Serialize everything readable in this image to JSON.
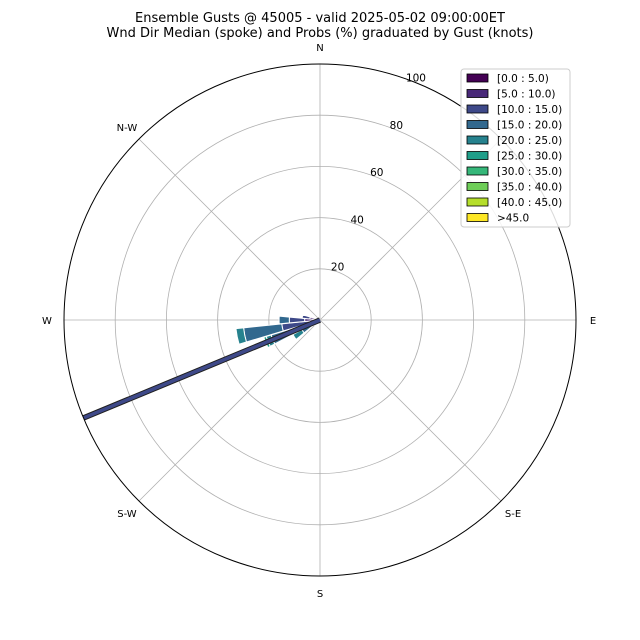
{
  "chart_data": {
    "type": "windrose",
    "title": "Ensemble Gusts @ 45005 - valid 2025-05-02 09:00:00ET",
    "subtitle": "Wnd Dir Median (spoke) and Probs (%) graduated by Gust (knots)",
    "direction_labels": [
      "N",
      "N-W",
      "W",
      "S-W",
      "S",
      "S-E",
      "E"
    ],
    "radial_ticks": [
      20,
      40,
      60,
      80,
      100
    ],
    "rlim": [
      0,
      100
    ],
    "grid": true,
    "legend_position": "top-right",
    "bins": [
      "[0.0 : 5.0)",
      "[5.0 : 10.0)",
      "[10.0 : 15.0)",
      "[15.0 : 20.0)",
      "[20.0 : 25.0)",
      "[25.0 : 30.0)",
      "[30.0 : 35.0)",
      "[35.0 : 40.0)",
      "[40.0 : 45.0)",
      ">45.0"
    ],
    "colors": [
      "#440154",
      "#482878",
      "#3e4989",
      "#31688e",
      "#26828e",
      "#1f9e89",
      "#35b779",
      "#6ece58",
      "#b5de2b",
      "#fde725"
    ],
    "sectors": [
      {
        "direction_deg": 225.0,
        "cumulative": [
          0.5,
          1.0,
          2.0,
          3.0
        ]
      },
      {
        "direction_deg": 236.25,
        "cumulative": [
          0.5,
          1.5,
          4.0,
          8.0,
          12.0
        ]
      },
      {
        "direction_deg": 247.5,
        "cumulative": [
          0.5,
          2.0,
          8.0,
          20.0,
          22.0,
          23.0
        ]
      },
      {
        "direction_deg": 258.75,
        "cumulative": [
          1.0,
          4.0,
          15.0,
          30.0,
          33.0
        ]
      },
      {
        "direction_deg": 270.0,
        "cumulative": [
          2.0,
          6.0,
          12.0,
          16.0
        ]
      },
      {
        "direction_deg": 281.25,
        "cumulative": [
          1.0,
          4.0,
          7.0
        ]
      },
      {
        "direction_deg": 292.5,
        "cumulative": [
          0.5,
          1.0
        ]
      }
    ],
    "median_spoke": {
      "direction_deg": 247.5,
      "length": 100,
      "color": "#3e4989"
    }
  }
}
